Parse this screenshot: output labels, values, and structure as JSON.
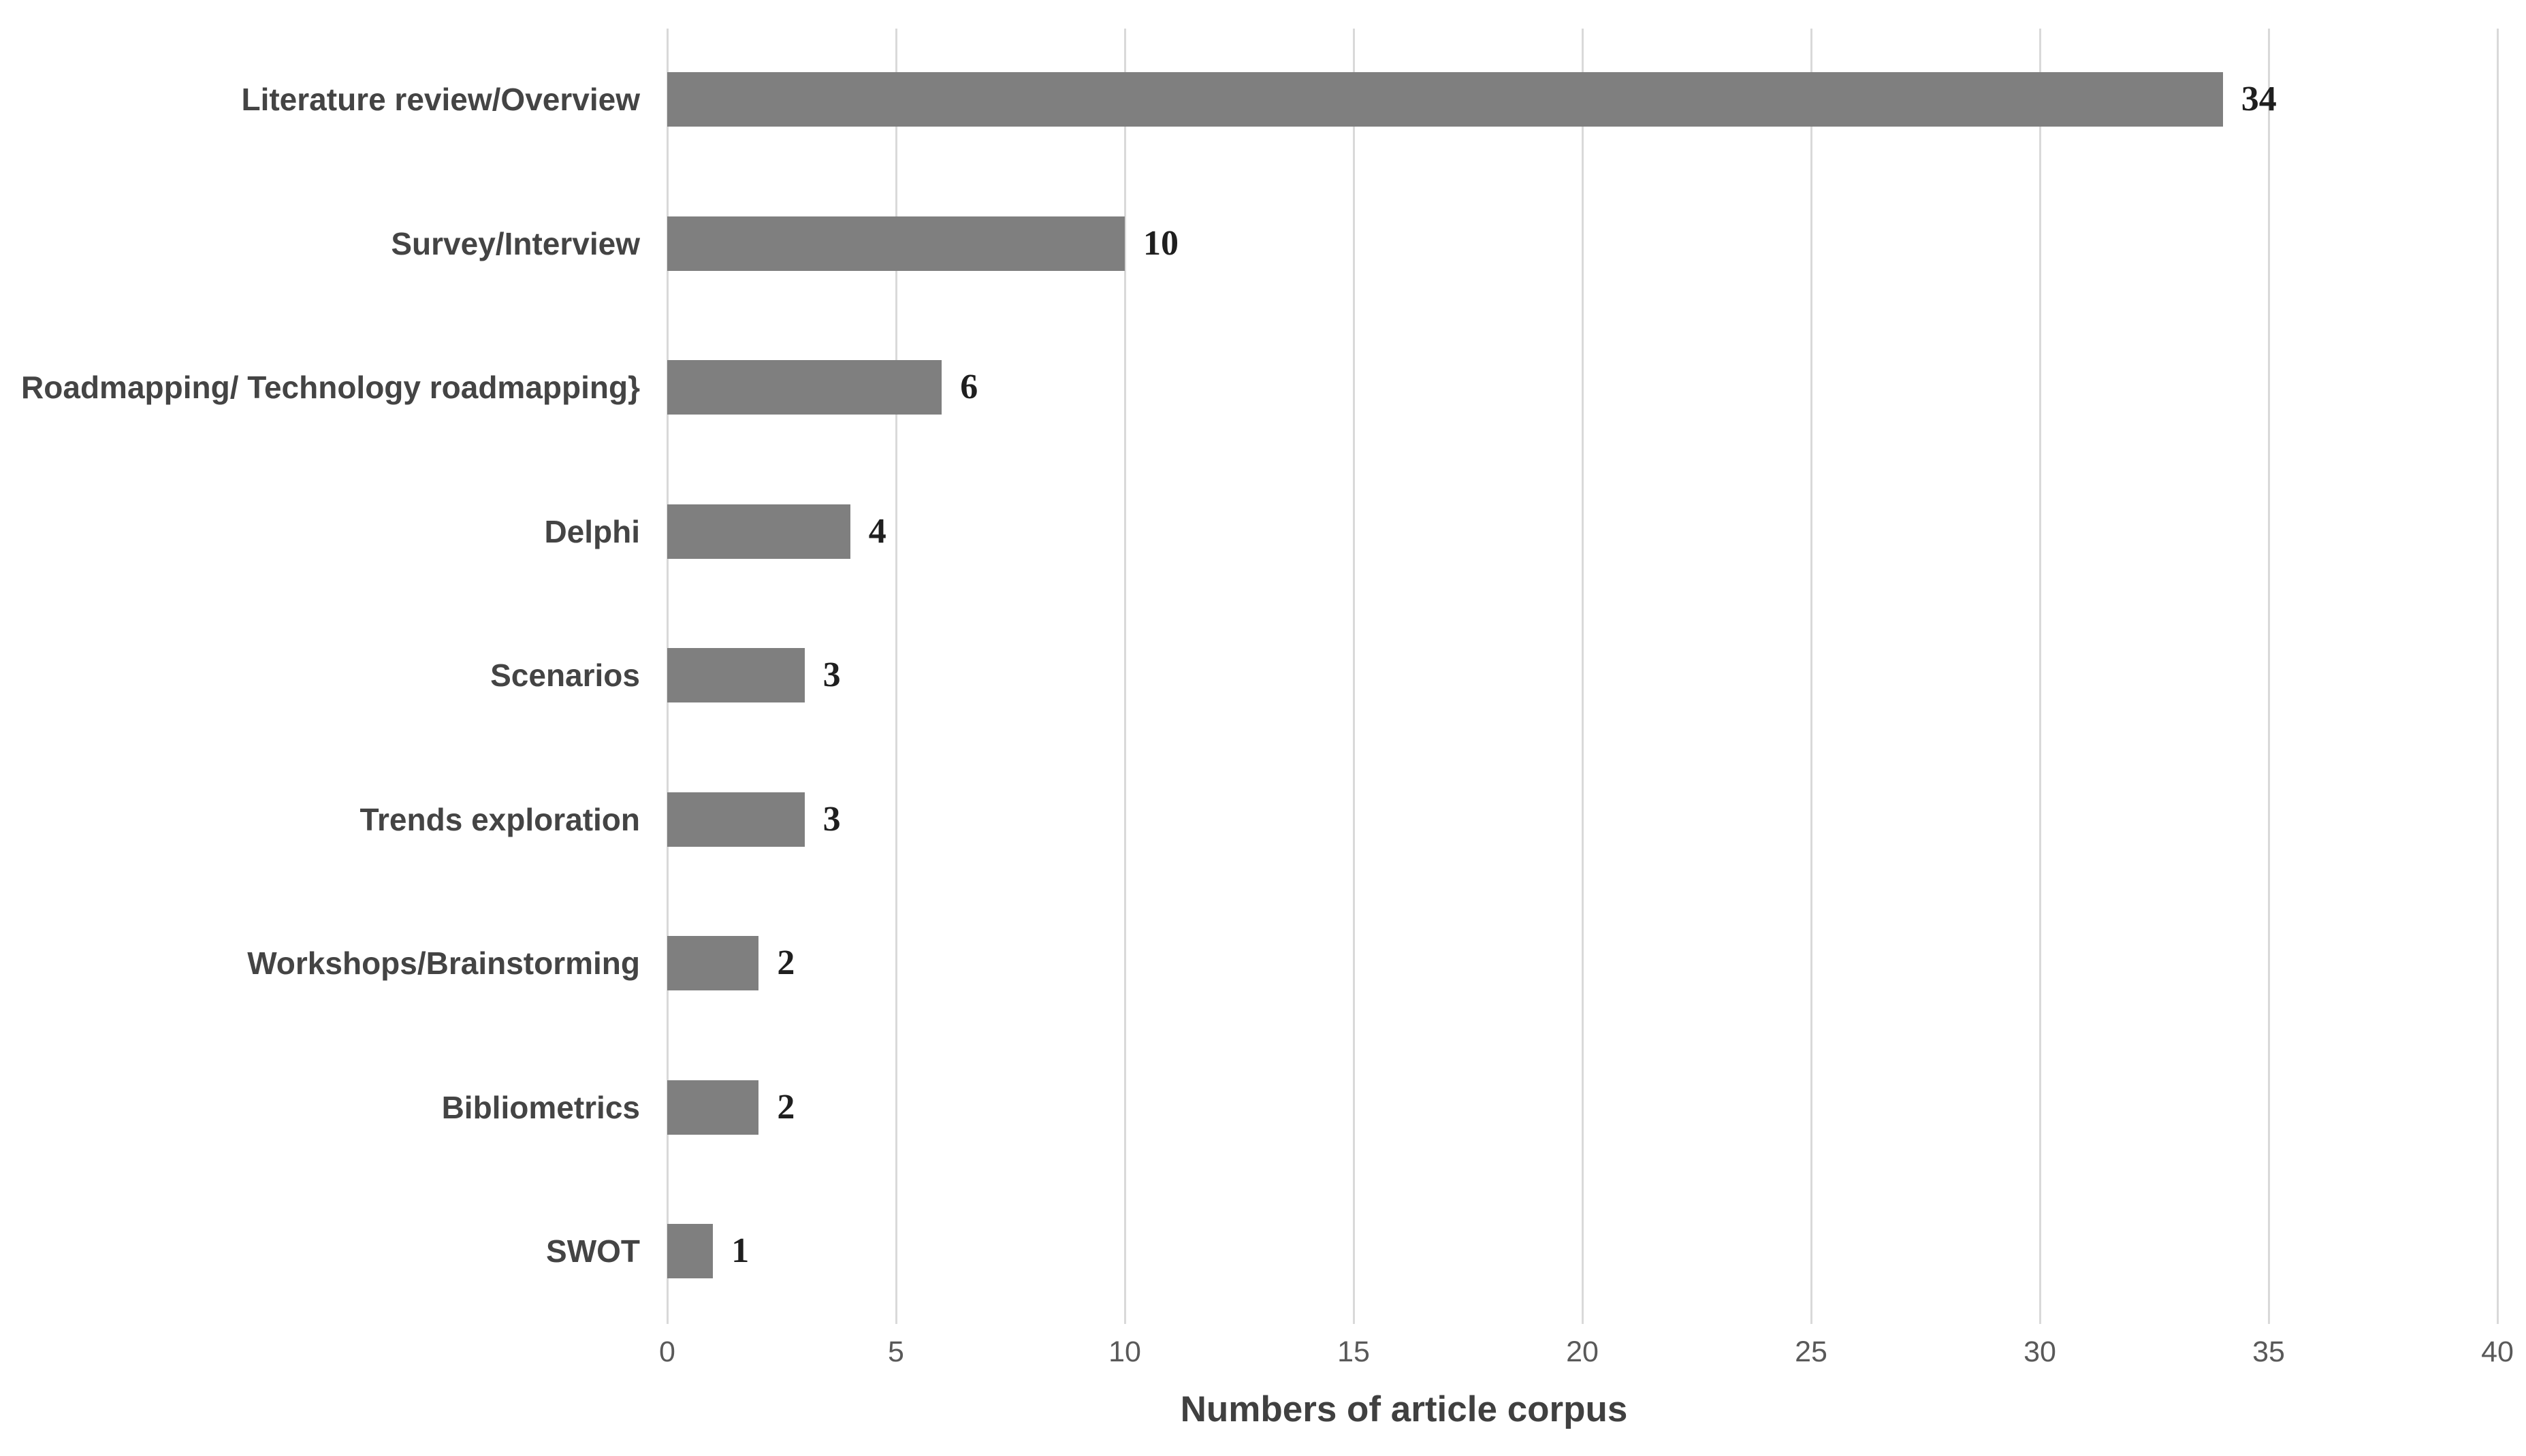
{
  "chart_data": {
    "type": "bar",
    "orientation": "horizontal",
    "title": "",
    "xlabel": "Numbers of article corpus",
    "ylabel": "",
    "categories": [
      "Literature review/Overview",
      "Survey/Interview",
      "Roadmapping/ Technology roadmapping}",
      "Delphi",
      "Scenarios",
      "Trends exploration",
      "Workshops/Brainstorming",
      "Bibliometrics",
      "SWOT"
    ],
    "values": [
      34,
      10,
      6,
      4,
      3,
      3,
      2,
      2,
      1
    ],
    "value_labels": [
      "34",
      "10",
      "6",
      "4",
      "3",
      "3",
      "2",
      "2",
      "1"
    ],
    "xlim": [
      0,
      40
    ],
    "x_ticks": [
      0,
      5,
      10,
      15,
      20,
      25,
      30,
      35,
      40
    ],
    "grid": "vertical-only",
    "legend": "none",
    "colors": {
      "bar": "#7f7f7f",
      "gridline": "#d9d9d9",
      "category_label": "#444444",
      "value_label": "#1f1f1f",
      "tick_label": "#595959",
      "axis_title": "#404040",
      "background": "#ffffff"
    }
  }
}
